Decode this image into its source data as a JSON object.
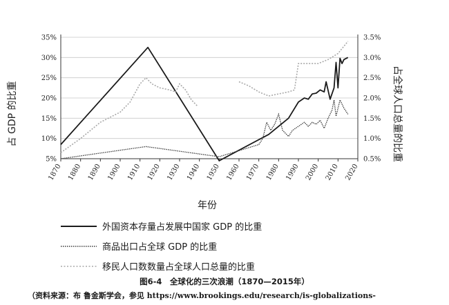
{
  "chart_data": {
    "type": "line",
    "xlabel": "年份",
    "ylabel_left": "占 GDP 的比重",
    "ylabel_right": "占全球人口总量的比重",
    "x_ticks": [
      "1870",
      "1880",
      "1890",
      "1900",
      "1910",
      "1920",
      "1930",
      "1940",
      "1950",
      "1960",
      "1970",
      "1980",
      "1990",
      "2000",
      "2010",
      "2020"
    ],
    "y_left_ticks": [
      "5%",
      "10%",
      "15%",
      "20%",
      "25%",
      "30%",
      "35%"
    ],
    "y_right_ticks": [
      "0.5%",
      "1.0%",
      "1.5%",
      "2.0%",
      "2.5%",
      "3.0%",
      "3.5%"
    ],
    "xlim": [
      1870,
      2020
    ],
    "ylim_left": [
      5,
      35
    ],
    "ylim_right": [
      0.5,
      3.5
    ],
    "grid": "horizontal",
    "series": [
      {
        "name": "外国资本存量占发展中国家 GDP 的比重",
        "axis": "left",
        "style": "solid",
        "points": [
          [
            1870,
            8.5
          ],
          [
            1914,
            32.5
          ],
          [
            1950,
            4.5
          ],
          [
            1975,
            11
          ],
          [
            1985,
            15
          ],
          [
            1990,
            19
          ],
          [
            1993,
            20
          ],
          [
            1995,
            19.7
          ],
          [
            1997,
            21
          ],
          [
            1999,
            21.2
          ],
          [
            2001,
            22
          ],
          [
            2003,
            21.5
          ],
          [
            2004,
            24
          ],
          [
            2006,
            19.7
          ],
          [
            2008,
            22.5
          ],
          [
            2009,
            28.8
          ],
          [
            2010,
            22.5
          ],
          [
            2011,
            29.8
          ],
          [
            2012,
            28.5
          ],
          [
            2013,
            29.5
          ],
          [
            2015,
            30
          ]
        ]
      },
      {
        "name": "商品出口占全球 GDP 的比重",
        "axis": "left",
        "style": "dotted",
        "points": [
          [
            1870,
            5
          ],
          [
            1913,
            8
          ],
          [
            1950,
            5.5
          ],
          [
            1960,
            7
          ],
          [
            1970,
            8.5
          ],
          [
            1972,
            10
          ],
          [
            1974,
            14
          ],
          [
            1976,
            12
          ],
          [
            1978,
            13.5
          ],
          [
            1980,
            16
          ],
          [
            1982,
            12
          ],
          [
            1985,
            10.5
          ],
          [
            1987,
            12
          ],
          [
            1990,
            13
          ],
          [
            1993,
            14
          ],
          [
            1995,
            13
          ],
          [
            1997,
            14
          ],
          [
            1999,
            13.5
          ],
          [
            2001,
            14.5
          ],
          [
            2003,
            12.5
          ],
          [
            2005,
            15
          ],
          [
            2007,
            17
          ],
          [
            2008,
            19.5
          ],
          [
            2009,
            15.5
          ],
          [
            2011,
            19.5
          ],
          [
            2013,
            17.5
          ],
          [
            2015,
            16
          ]
        ]
      },
      {
        "name": "移民人口数数量占全球人口总量的比重",
        "axis": "right",
        "style": "dotted",
        "segments": [
          [
            [
              1870,
              0.65
            ],
            [
              1880,
              1.0
            ],
            [
              1890,
              1.4
            ],
            [
              1900,
              1.65
            ],
            [
              1905,
              1.9
            ],
            [
              1910,
              2.35
            ],
            [
              1913,
              2.5
            ],
            [
              1916,
              2.35
            ],
            [
              1920,
              2.25
            ],
            [
              1925,
              2.2
            ],
            [
              1928,
              2.15
            ],
            [
              1930,
              2.35
            ],
            [
              1933,
              2.2
            ],
            [
              1936,
              1.95
            ],
            [
              1939,
              1.8
            ]
          ],
          [
            [
              1960,
              2.4
            ],
            [
              1965,
              2.3
            ],
            [
              1970,
              2.15
            ],
            [
              1975,
              2.05
            ],
            [
              1980,
              2.1
            ],
            [
              1985,
              2.15
            ],
            [
              1988,
              2.2
            ],
            [
              1990,
              2.85
            ],
            [
              1995,
              2.85
            ],
            [
              2000,
              2.85
            ],
            [
              2005,
              2.95
            ],
            [
              2010,
              3.1
            ],
            [
              2015,
              3.4
            ]
          ]
        ]
      }
    ]
  },
  "legend": [
    {
      "label": "外国资本存量占发展中国家 GDP 的比重",
      "style": "solid"
    },
    {
      "label": "商品出口占全球 GDP 的比重",
      "style": "dotted"
    },
    {
      "label": "移民人口数数量占全球人口总量的比重",
      "style": "dotted"
    }
  ],
  "caption": "图6-4　全球化的三次浪潮（1870—2015年）",
  "source": "（资料来源：布 鲁金斯学会，参见 https://www.brookings.edu/research/is-globalizations-",
  "colors": {
    "solid": "#1a1a1a",
    "exports": "#3a3a3a",
    "migration": "#a8a8a8",
    "grid": "#c8c8c8"
  }
}
